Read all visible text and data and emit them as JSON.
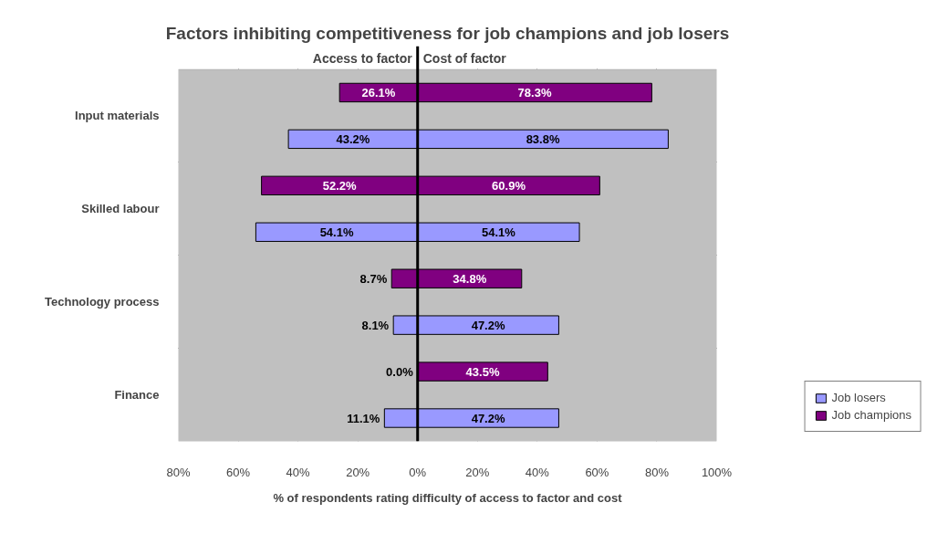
{
  "chart_data": {
    "type": "bar",
    "orientation": "horizontal",
    "title": "Factors inhibiting competitiveness for job champions and job losers",
    "xlabel": "% of respondents rating difficulty of access to factor and cost",
    "annotations": [
      "Access to factor",
      "Cost of factor"
    ],
    "categories": [
      "Input materials",
      "Skilled labour",
      "Technology process",
      "Finance"
    ],
    "series": [
      {
        "color": "#800080",
        "values": [
          26.1,
          52.2,
          8.7,
          0.0
        ],
        "base": [
          -26.1,
          -52.2,
          -8.7,
          0.0
        ],
        "value_labels": [
          "26.1%",
          "52.2%",
          "8.7%",
          "0.0%"
        ]
      },
      {
        "name": "Job champions",
        "color": "#800080",
        "values": [
          78.3,
          60.9,
          34.8,
          43.5
        ],
        "value_labels": [
          "78.3%",
          "60.9%",
          "34.8%",
          "43.5%"
        ]
      },
      {
        "color": "#9999ff",
        "values": [
          43.2,
          54.1,
          8.1,
          11.1
        ],
        "base": [
          -43.2,
          -54.1,
          -8.1,
          -11.1
        ],
        "value_labels": [
          "43.2%",
          "54.1%",
          "8.1%",
          "11.1%"
        ]
      },
      {
        "name": "Job losers",
        "color": "#9999ff",
        "values": [
          83.8,
          54.1,
          47.2,
          47.2
        ],
        "value_labels": [
          "83.8%",
          "54.1%",
          "47.2%",
          "47.2%"
        ]
      }
    ],
    "xlim": [
      -80,
      100
    ],
    "xticks": [
      {
        "value": -80,
        "label": "80%"
      },
      {
        "value": -60,
        "label": "60%"
      },
      {
        "value": -40,
        "label": "40%"
      },
      {
        "value": -20,
        "label": "20%"
      },
      {
        "value": 0,
        "label": "0%"
      },
      {
        "value": 20,
        "label": "20%"
      },
      {
        "value": 40,
        "label": "40%"
      },
      {
        "value": 60,
        "label": "60%"
      },
      {
        "value": 80,
        "label": "80%"
      },
      {
        "value": 100,
        "label": "100%"
      }
    ],
    "ref_lines": [
      {
        "axis": "x",
        "value": 0,
        "color": "#000000"
      }
    ],
    "grid": true,
    "legend": "bottom right"
  }
}
